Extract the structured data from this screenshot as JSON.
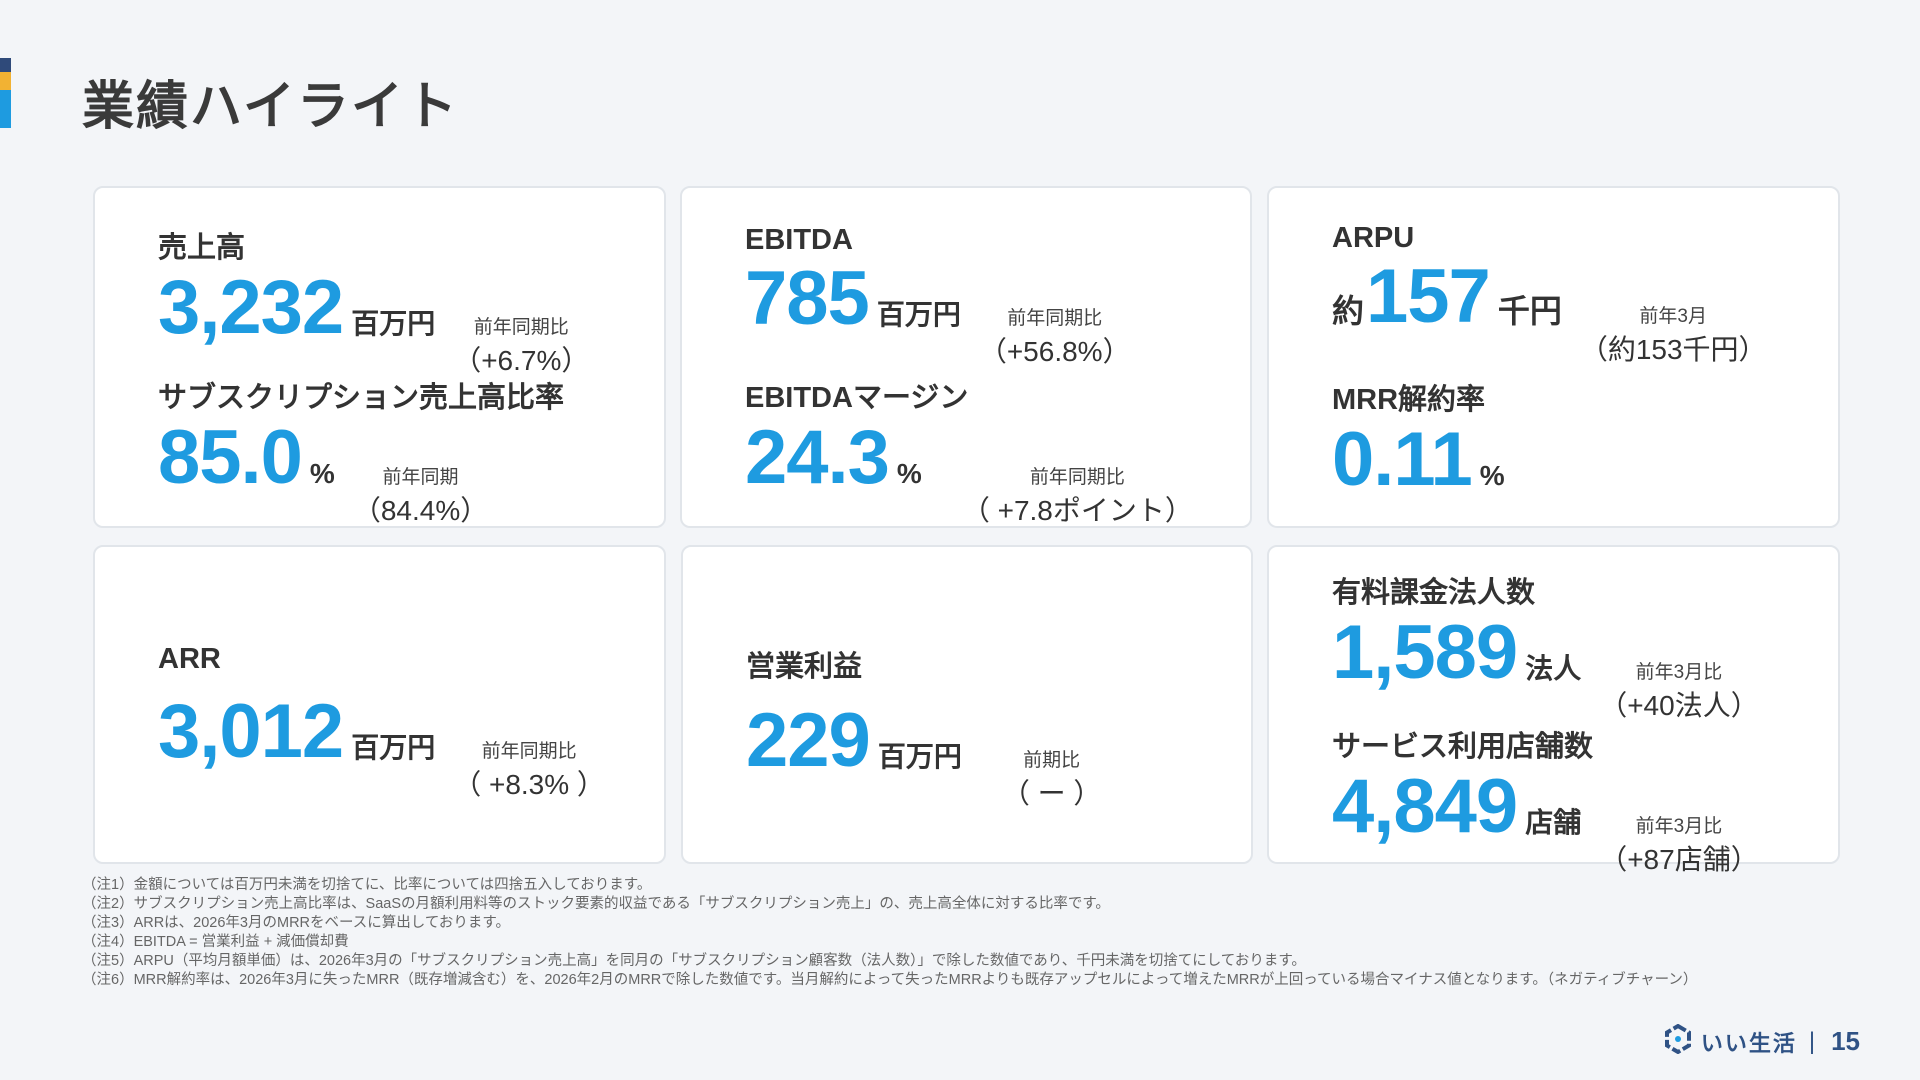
{
  "page": {
    "title": "業績ハイライト",
    "number": "15"
  },
  "brand": {
    "name": "いい生活",
    "separator": "|",
    "colors": {
      "accent": "#1e9be0",
      "navy": "#2f4a7a",
      "gold": "#f2b233",
      "text": "#333333"
    }
  },
  "cards": {
    "sales": {
      "label": "売上高",
      "value": "3,232",
      "unit": "百万円",
      "cmp_label": "前年同期比",
      "cmp_value": "（+6.7%）"
    },
    "sub_ratio": {
      "label": "サブスクリプション売上高比率",
      "value": "85.0",
      "unit": "%",
      "cmp_label": "前年同期",
      "cmp_value": "（84.4%）"
    },
    "ebitda": {
      "label": "EBITDA",
      "value": "785",
      "unit": "百万円",
      "cmp_label": "前年同期比",
      "cmp_value": "（+56.8%）"
    },
    "ebitda_margin": {
      "label": "EBITDAマージン",
      "value": "24.3",
      "unit": "%",
      "cmp_label": "前年同期比",
      "cmp_value": "（ +7.8ポイント）"
    },
    "arpu": {
      "label": "ARPU",
      "prefix": "約",
      "value": "157",
      "unit": "千円",
      "cmp_label": "前年3月",
      "cmp_value": "（約153千円）"
    },
    "mrr_churn": {
      "label": "MRR解約率",
      "value": "0.11",
      "unit": "%"
    },
    "arr": {
      "label": "ARR",
      "value": "3,012",
      "unit": "百万円",
      "cmp_label": "前年同期比",
      "cmp_value": "（ +8.3% ）"
    },
    "operating_profit": {
      "label": "営業利益",
      "value": "229",
      "unit": "百万円",
      "cmp_label": "前期比",
      "cmp_value": "（ ー ）"
    },
    "paid_corps": {
      "label": "有料課金法人数",
      "value": "1,589",
      "unit": "法人",
      "cmp_label": "前年3月比",
      "cmp_value": "（+40法人）"
    },
    "stores": {
      "label": "サービス利用店舗数",
      "value": "4,849",
      "unit": "店舗",
      "cmp_label": "前年3月比",
      "cmp_value": "（+87店舗）"
    }
  },
  "notes": [
    "（注1）金額については百万円未満を切捨てに、比率については四捨五入しております。",
    "（注2）サブスクリプション売上高比率は、SaaSの月額利用料等のストック要素的収益である「サブスクリプション売上」の、売上高全体に対する比率です。",
    "（注3）ARRは、2026年3月のMRRをベースに算出しております。",
    "（注4）EBITDA = 営業利益 + 減価償却費",
    "（注5）ARPU（平均月額単価）は、2026年3月の「サブスクリプション売上高」を同月の「サブスクリプション顧客数（法人数）」で除した数値であり、千円未満を切捨てにしております。",
    "（注6）MRR解約率は、2026年3月に失ったMRR（既存増減含む）を、2026年2月のMRRで除した数値です。当月解約によって失ったMRRよりも既存アップセルによって増えたMRRが上回っている場合マイナス値となります。（ネガティブチャーン）"
  ]
}
